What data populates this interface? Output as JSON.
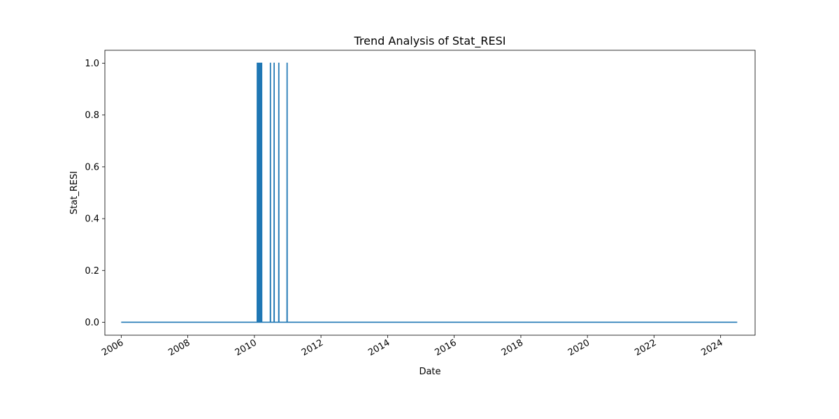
{
  "chart_data": {
    "type": "line",
    "title": "Trend Analysis of Stat_RESI",
    "xlabel": "Date",
    "ylabel": "Stat_RESI",
    "x_type": "date",
    "xlim": [
      "2005-07-06",
      "2025-01-13"
    ],
    "ylim": [
      -0.05,
      1.05
    ],
    "x_ticks": [
      "2006-01-01",
      "2008-01-01",
      "2010-01-01",
      "2012-01-01",
      "2014-01-01",
      "2016-01-01",
      "2018-01-01",
      "2020-01-01",
      "2022-01-01",
      "2024-01-01"
    ],
    "x_tick_labels": [
      "2006",
      "2008",
      "2010",
      "2012",
      "2014",
      "2016",
      "2018",
      "2020",
      "2022",
      "2024"
    ],
    "y_ticks": [
      0.0,
      0.2,
      0.4,
      0.6,
      0.8,
      1.0
    ],
    "y_tick_labels": [
      "0.0",
      "0.2",
      "0.4",
      "0.6",
      "0.8",
      "1.0"
    ],
    "grid": false,
    "color": "#1f77b4",
    "series": [
      {
        "x": [
          "2006-01-01",
          "2010-01-31",
          "2010-02-01",
          "2010-02-02",
          "2010-02-03",
          "2010-02-06",
          "2010-02-07",
          "2010-02-08",
          "2010-02-09",
          "2010-02-12",
          "2010-02-13",
          "2010-02-14",
          "2010-02-15",
          "2010-02-18",
          "2010-02-19",
          "2010-02-20",
          "2010-02-21",
          "2010-02-24",
          "2010-02-25",
          "2010-02-26",
          "2010-02-27",
          "2010-03-02",
          "2010-03-03",
          "2010-03-04",
          "2010-03-05",
          "2010-03-08",
          "2010-03-09",
          "2010-03-10",
          "2010-03-11",
          "2010-03-14",
          "2010-03-15",
          "2010-03-16",
          "2010-03-17",
          "2010-03-20",
          "2010-03-21",
          "2010-03-22",
          "2010-03-23",
          "2010-06-24",
          "2010-06-25",
          "2010-06-26",
          "2010-06-27",
          "2010-08-04",
          "2010-08-05",
          "2010-08-06",
          "2010-08-07",
          "2010-09-24",
          "2010-09-25",
          "2010-09-26",
          "2010-09-27",
          "2010-12-24",
          "2010-12-25",
          "2010-12-26",
          "2010-12-27",
          "2024-07-01"
        ],
        "y": [
          0,
          0,
          1,
          1,
          0,
          0,
          1,
          1,
          0,
          0,
          1,
          1,
          0,
          0,
          1,
          1,
          0,
          0,
          1,
          1,
          0,
          0,
          1,
          1,
          0,
          0,
          1,
          1,
          0,
          0,
          1,
          1,
          0,
          0,
          1,
          1,
          0,
          0,
          1,
          1,
          0,
          0,
          1,
          1,
          0,
          0,
          1,
          1,
          0,
          0,
          1,
          1,
          0,
          0
        ]
      }
    ]
  }
}
